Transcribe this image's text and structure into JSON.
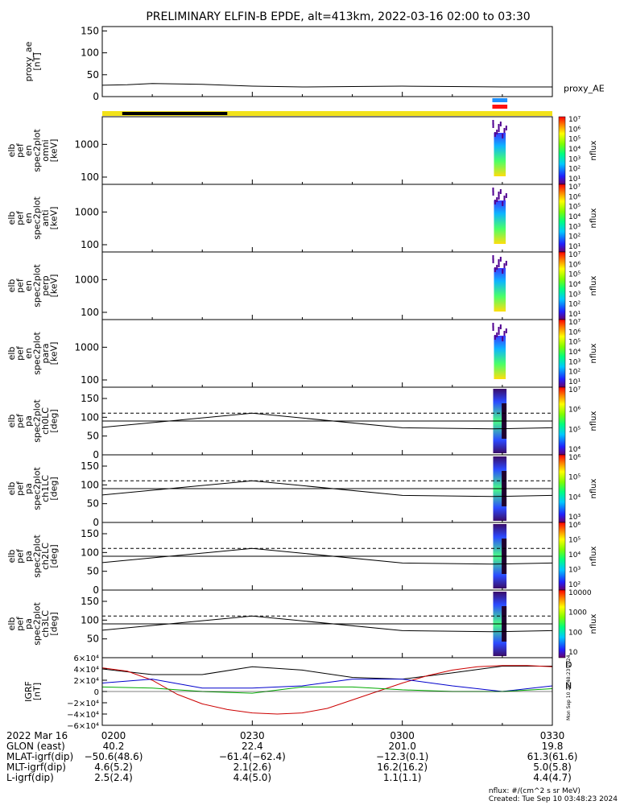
{
  "title": "PRELIMINARY ELFIN-B EPDE, alt=413km, 2022-03-16 02:00 to 03:30",
  "footer": {
    "units": "nflux: #/(cm^2 s sr MeV)",
    "created": "Created: Tue Sep 10 03:48:23 2024"
  },
  "side_stamp": "Mon Sep 10 20:48:23 2024",
  "colors": {
    "state_yellow": "#f2e21a",
    "state_black": "#000000",
    "marker_blue": "#1e90ff",
    "marker_red": "#ff1010",
    "grf_black": "#000000",
    "grf_red": "#cc0000",
    "grf_blue": "#0000cc",
    "grf_green": "#00aa00"
  },
  "chart_data": [
    {
      "type": "line",
      "panel": "proxy_ae",
      "ylabel": [
        "proxy_ae",
        "[nT]"
      ],
      "legend": "proxy_AE",
      "yticks": [
        "150",
        "100",
        "50",
        "0"
      ],
      "ylim": [
        0,
        160
      ],
      "x_min": [
        0,
        90
      ],
      "series": [
        {
          "name": "proxy_AE",
          "x": [
            0,
            5,
            10,
            20,
            30,
            40,
            50,
            60,
            70,
            80,
            90
          ],
          "y": [
            26,
            27,
            30,
            28,
            24,
            22,
            23,
            24,
            23,
            22,
            22
          ]
        }
      ]
    },
    {
      "type": "heatmap",
      "panel": "spec_omni",
      "ylabel": [
        "elb",
        "pef",
        "en",
        "spec2plot",
        "omni",
        "[keV]"
      ],
      "yticks": [
        "1000",
        "100"
      ],
      "ylog": true,
      "ylim": [
        60,
        7000
      ],
      "colorbar_label": "nflux",
      "colorbar_ticks": [
        "10⁷",
        "10⁶",
        "10⁵",
        "10⁴",
        "10³",
        "10²",
        "10¹"
      ],
      "active_x_min": [
        78,
        81
      ]
    },
    {
      "type": "heatmap",
      "panel": "spec_anti",
      "ylabel": [
        "elb",
        "pef",
        "en",
        "spec2plot",
        "anti",
        "[keV]"
      ],
      "yticks": [
        "1000",
        "100"
      ],
      "ylog": true,
      "ylim": [
        60,
        7000
      ],
      "colorbar_label": "nflux",
      "colorbar_ticks": [
        "10⁷",
        "10⁶",
        "10⁵",
        "10⁴",
        "10³",
        "10²",
        "10¹"
      ],
      "active_x_min": [
        78,
        81
      ]
    },
    {
      "type": "heatmap",
      "panel": "spec_perp",
      "ylabel": [
        "elb",
        "pef",
        "en",
        "spec2plot",
        "perp",
        "[keV]"
      ],
      "yticks": [
        "1000",
        "100"
      ],
      "ylog": true,
      "ylim": [
        60,
        7000
      ],
      "colorbar_label": "nflux",
      "colorbar_ticks": [
        "10⁷",
        "10⁶",
        "10⁵",
        "10⁴",
        "10³",
        "10²",
        "10¹"
      ],
      "active_x_min": [
        78,
        81
      ]
    },
    {
      "type": "heatmap",
      "panel": "spec_para",
      "ylabel": [
        "elb",
        "pef",
        "en",
        "spec2plot",
        "para",
        "[keV]"
      ],
      "yticks": [
        "1000",
        "100"
      ],
      "ylog": true,
      "ylim": [
        60,
        7000
      ],
      "colorbar_label": "nflux",
      "colorbar_ticks": [
        "10⁷",
        "10⁶",
        "10⁵",
        "10⁴",
        "10³",
        "10²",
        "10¹"
      ],
      "active_x_min": [
        78,
        81
      ]
    },
    {
      "type": "heatmap",
      "panel": "pa_ch0LC",
      "ylabel": [
        "elb",
        "pef",
        "pa",
        "spec2plot",
        "ch0LC",
        "[deg]"
      ],
      "yticks": [
        "150",
        "100",
        "50",
        "0"
      ],
      "ylim": [
        0,
        180
      ],
      "colorbar_label": "nflux",
      "colorbar_ticks": [
        "10⁷",
        "10⁶",
        "10⁵",
        "10⁴"
      ],
      "dashed_y": 111,
      "lc_x_min": [
        0,
        30,
        60,
        78,
        90
      ],
      "lc_y": [
        73,
        111,
        72,
        69,
        72
      ],
      "alc_y": 90,
      "active_x_min": [
        78,
        81
      ]
    },
    {
      "type": "heatmap",
      "panel": "pa_ch1LC",
      "ylabel": [
        "elb",
        "pef",
        "pa",
        "spec2plot",
        "ch1LC",
        "[deg]"
      ],
      "yticks": [
        "150",
        "100",
        "50",
        "0"
      ],
      "ylim": [
        0,
        180
      ],
      "colorbar_label": "nflux",
      "colorbar_ticks": [
        "10⁶",
        "10⁵",
        "10⁴",
        "10³"
      ],
      "dashed_y": 111,
      "lc_x_min": [
        0,
        30,
        60,
        78,
        90
      ],
      "lc_y": [
        73,
        111,
        72,
        69,
        72
      ],
      "alc_y": 90,
      "active_x_min": [
        78,
        81
      ]
    },
    {
      "type": "heatmap",
      "panel": "pa_ch2LC",
      "ylabel": [
        "elb",
        "pef",
        "pa",
        "spec2plot",
        "ch2LC",
        "[deg]"
      ],
      "yticks": [
        "150",
        "100",
        "50",
        "0"
      ],
      "ylim": [
        0,
        180
      ],
      "colorbar_label": "nflux",
      "colorbar_ticks": [
        "10⁶",
        "10⁵",
        "10⁴",
        "10³",
        "10²"
      ],
      "dashed_y": 111,
      "lc_x_min": [
        0,
        30,
        60,
        78,
        90
      ],
      "lc_y": [
        73,
        111,
        72,
        69,
        72
      ],
      "alc_y": 90,
      "active_x_min": [
        78,
        81
      ]
    },
    {
      "type": "heatmap",
      "panel": "pa_ch3LC",
      "ylabel": [
        "elb",
        "pef",
        "pa",
        "spec2plot",
        "ch3LC",
        "[deg]"
      ],
      "yticks": [
        "150",
        "100",
        "50"
      ],
      "ylim": [
        0,
        180
      ],
      "colorbar_label": "nflux",
      "colorbar_ticks": [
        "10000",
        "1000",
        "100",
        "10"
      ],
      "dashed_y": 111,
      "lc_x_min": [
        0,
        30,
        60,
        78,
        90
      ],
      "lc_y": [
        73,
        111,
        72,
        69,
        72
      ],
      "alc_y": 90,
      "active_x_min": [
        78,
        81
      ]
    },
    {
      "type": "line",
      "panel": "igrf",
      "ylabel": [
        "IGRF",
        "[nT]"
      ],
      "yticks": [
        "6×10⁴",
        "4×10⁴",
        "2×10⁴",
        "0",
        "−2×10⁴",
        "−4×10⁴",
        "−6×10⁴"
      ],
      "ylim": [
        -60000,
        60000
      ],
      "legend": [
        "D",
        "N"
      ],
      "series": [
        {
          "name": "black",
          "x": [
            0,
            10,
            20,
            30,
            40,
            50,
            60,
            70,
            80,
            90
          ],
          "y": [
            40000,
            30000,
            30000,
            44000,
            38000,
            25000,
            22000,
            33000,
            45000,
            45000
          ]
        },
        {
          "name": "red",
          "x": [
            0,
            5,
            10,
            15,
            20,
            25,
            30,
            35,
            40,
            45,
            50,
            55,
            60,
            65,
            70,
            75,
            80,
            85,
            90
          ],
          "y": [
            42000,
            36000,
            20000,
            -5000,
            -22000,
            -32000,
            -38000,
            -40000,
            -38000,
            -30000,
            -15000,
            0,
            15000,
            28000,
            38000,
            44000,
            46000,
            46000,
            44000
          ]
        },
        {
          "name": "blue",
          "x": [
            0,
            10,
            20,
            30,
            40,
            50,
            60,
            70,
            80,
            90
          ],
          "y": [
            15000,
            22000,
            6000,
            6000,
            10000,
            22000,
            22000,
            10000,
            0,
            10000
          ]
        },
        {
          "name": "green",
          "x": [
            0,
            10,
            20,
            30,
            40,
            50,
            60,
            70,
            80,
            90
          ],
          "y": [
            8000,
            6000,
            0,
            -3000,
            8000,
            8000,
            3000,
            0,
            0,
            5000
          ]
        }
      ]
    }
  ],
  "x_axis": {
    "ticks": [
      {
        "x_min": 0,
        "label": "0200",
        "glon": "40.2",
        "mlat": "−50.6(48.6)",
        "mlt": "4.6(5.2)",
        "lshell": "2.5(2.4)"
      },
      {
        "x_min": 30,
        "label": "0230",
        "glon": "22.4",
        "mlat": "−61.4(−62.4)",
        "mlt": "2.1(2.6)",
        "lshell": "4.4(5.0)"
      },
      {
        "x_min": 60,
        "label": "0300",
        "glon": "201.0",
        "mlat": "−12.3(0.1)",
        "mlt": "16.2(16.2)",
        "lshell": "1.1(1.1)"
      },
      {
        "x_min": 90,
        "label": "0330",
        "glon": "19.8",
        "mlat": "61.3(61.6)",
        "mlt": "5.0(5.8)",
        "lshell": "4.4(4.7)"
      }
    ],
    "row_labels": {
      "date": "2022 Mar 16",
      "glon": "GLON (east)",
      "mlat": "MLAT-igrf(dip)",
      "mlt": "MLT-igrf(dip)",
      "lshell": "L-igrf(dip)"
    }
  }
}
